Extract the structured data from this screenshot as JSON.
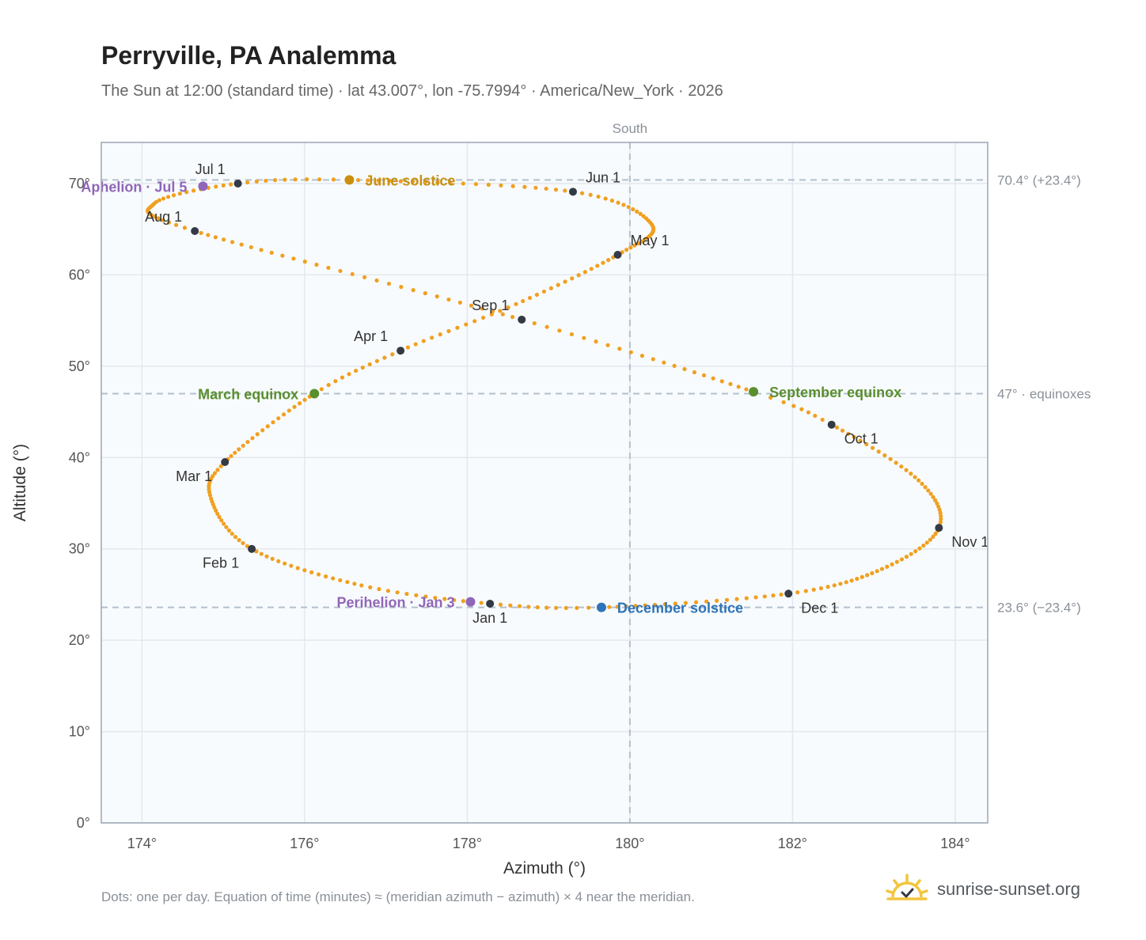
{
  "header": {
    "title": "Perryville, PA Analemma",
    "subtitle": "The Sun at 12:00 (standard time) · lat 43.007°, lon -75.7994° · America/New_York · 2026"
  },
  "footer": {
    "note": "Dots: one per day. Equation of time (minutes) ≈ (meridian azimuth − azimuth) × 4 near the meridian.",
    "brand": "sunrise-sunset.org"
  },
  "colors": {
    "curve": "#f0a020",
    "marker": "#333a45",
    "june": "#c9900e",
    "equinox": "#5a8f2e",
    "december": "#2e74b8",
    "apsis": "#9066b8",
    "plot_bg": "#f8fbfd",
    "grid": "#e3e8ee",
    "ref_line": "#b3c0cc"
  },
  "chart_data": {
    "type": "scatter",
    "xlabel": "Azimuth (°)",
    "ylabel": "Altitude (°)",
    "xlim": [
      173.5,
      184.4
    ],
    "ylim": [
      0,
      74.5
    ],
    "xticks": [
      174,
      176,
      178,
      180,
      182,
      184
    ],
    "yticks": [
      0,
      10,
      20,
      30,
      40,
      50,
      60,
      70
    ],
    "tick_suffix": "°",
    "grid": true,
    "meridian": {
      "x": 180,
      "label": "South"
    },
    "reference_lines": [
      {
        "y": 70.4,
        "label": "70.4° (+23.4°)"
      },
      {
        "y": 47,
        "label": "47° · equinoxes"
      },
      {
        "y": 23.6,
        "label": "23.6° (−23.4°)"
      }
    ],
    "path_knots": [
      {
        "doy": 1,
        "az": 178.28,
        "alt": 24.0
      },
      {
        "doy": 15,
        "az": 176.7,
        "alt": 26.0
      },
      {
        "doy": 32,
        "az": 175.35,
        "alt": 30.0
      },
      {
        "doy": 48,
        "az": 174.85,
        "alt": 35.5
      },
      {
        "doy": 60,
        "az": 175.02,
        "alt": 39.5
      },
      {
        "doy": 79,
        "az": 176.12,
        "alt": 47.0
      },
      {
        "doy": 91,
        "az": 177.18,
        "alt": 51.7
      },
      {
        "doy": 105,
        "az": 178.6,
        "alt": 56.8
      },
      {
        "doy": 121,
        "az": 179.85,
        "alt": 62.2
      },
      {
        "doy": 136,
        "az": 180.27,
        "alt": 65.5
      },
      {
        "doy": 152,
        "az": 179.3,
        "alt": 69.1
      },
      {
        "doy": 172,
        "az": 176.55,
        "alt": 70.4
      },
      {
        "doy": 182,
        "az": 175.18,
        "alt": 70.0
      },
      {
        "doy": 196,
        "az": 174.15,
        "alt": 67.8
      },
      {
        "doy": 213,
        "az": 174.65,
        "alt": 64.8
      },
      {
        "doy": 244,
        "az": 178.67,
        "alt": 55.1
      },
      {
        "doy": 266,
        "az": 181.52,
        "alt": 47.2
      },
      {
        "doy": 274,
        "az": 182.48,
        "alt": 43.6
      },
      {
        "doy": 290,
        "az": 183.55,
        "alt": 37.5
      },
      {
        "doy": 305,
        "az": 183.8,
        "alt": 32.3
      },
      {
        "doy": 320,
        "az": 183.1,
        "alt": 27.8
      },
      {
        "doy": 335,
        "az": 181.95,
        "alt": 25.1
      },
      {
        "doy": 355,
        "az": 179.65,
        "alt": 23.6
      },
      {
        "doy": 366,
        "az": 178.28,
        "alt": 24.0
      }
    ],
    "month_markers": [
      {
        "label": "Jan 1",
        "az": 178.28,
        "alt": 24.0,
        "pos": "below"
      },
      {
        "label": "Feb 1",
        "az": 175.35,
        "alt": 30.0,
        "pos": "below-left"
      },
      {
        "label": "Mar 1",
        "az": 175.02,
        "alt": 39.5,
        "pos": "below-left"
      },
      {
        "label": "Apr 1",
        "az": 177.18,
        "alt": 51.7,
        "pos": "above-left"
      },
      {
        "label": "May 1",
        "az": 179.85,
        "alt": 62.2,
        "pos": "above-right"
      },
      {
        "label": "Jun 1",
        "az": 179.3,
        "alt": 69.1,
        "pos": "above-right"
      },
      {
        "label": "Jul 1",
        "az": 175.18,
        "alt": 70.0,
        "pos": "above-left"
      },
      {
        "label": "Aug 1",
        "az": 174.65,
        "alt": 64.8,
        "pos": "above-left"
      },
      {
        "label": "Sep 1",
        "az": 178.67,
        "alt": 55.1,
        "pos": "above-left"
      },
      {
        "label": "Oct 1",
        "az": 182.48,
        "alt": 43.6,
        "pos": "below-right"
      },
      {
        "label": "Nov 1",
        "az": 183.8,
        "alt": 32.3,
        "pos": "below-right"
      },
      {
        "label": "Dec 1",
        "az": 181.95,
        "alt": 25.1,
        "pos": "below-right"
      }
    ],
    "events": [
      {
        "label": "June solstice",
        "az": 176.55,
        "alt": 70.4,
        "color": "june",
        "pos": "right"
      },
      {
        "label": "March equinox",
        "az": 176.12,
        "alt": 47.0,
        "color": "equinox",
        "pos": "left"
      },
      {
        "label": "September equinox",
        "az": 181.52,
        "alt": 47.2,
        "color": "equinox",
        "pos": "right"
      },
      {
        "label": "December solstice",
        "az": 179.65,
        "alt": 23.6,
        "color": "december",
        "pos": "right"
      },
      {
        "label": "Aphelion · Jul 5",
        "az": 174.75,
        "alt": 69.7,
        "color": "apsis",
        "pos": "left"
      },
      {
        "label": "Perihelion · Jan 3",
        "az": 178.04,
        "alt": 24.2,
        "color": "apsis",
        "pos": "left"
      }
    ]
  }
}
